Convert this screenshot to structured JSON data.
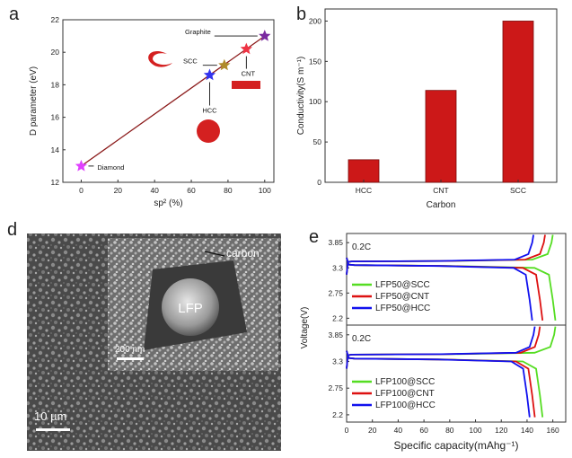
{
  "panels": {
    "a": "a",
    "b": "b",
    "d": "d",
    "e": "e"
  },
  "chart_data": [
    {
      "id": "a",
      "type": "scatter",
      "title": "",
      "xlabel": "sp² (%)",
      "ylabel": "D parameter (eV)",
      "xlim": [
        -10,
        105
      ],
      "ylim": [
        12,
        22
      ],
      "xticks": [
        0,
        20,
        40,
        60,
        80,
        100
      ],
      "yticks": [
        12,
        14,
        16,
        18,
        20,
        22
      ],
      "trend_line": {
        "x": [
          0,
          100
        ],
        "y": [
          13,
          21
        ]
      },
      "points": [
        {
          "name": "Diamond",
          "x": 0,
          "y": 13,
          "color": "#e040ff"
        },
        {
          "name": "HCC",
          "x": 70,
          "y": 18.6,
          "color": "#3333ee"
        },
        {
          "name": "SCC",
          "x": 78,
          "y": 19.2,
          "color": "#b08a2a"
        },
        {
          "name": "CNT",
          "x": 90,
          "y": 20.2,
          "color": "#ee3344"
        },
        {
          "name": "Graphite",
          "x": 100,
          "y": 21,
          "color": "#7a2aa0"
        }
      ]
    },
    {
      "id": "b",
      "type": "bar",
      "title": "",
      "xlabel": "Carbon",
      "ylabel": "Conductivity(S m⁻¹)",
      "categories": [
        "HCC",
        "CNT",
        "SCC"
      ],
      "values": [
        28,
        114,
        200
      ],
      "ylim": [
        0,
        215
      ],
      "yticks": [
        0,
        50,
        100,
        150,
        200
      ],
      "bar_color": "#cc1818"
    },
    {
      "id": "e",
      "type": "line",
      "title": "",
      "xlabel": "Specific capacity(mAhg⁻¹)",
      "ylabel": "Voltage(V)",
      "xlim": [
        0,
        170
      ],
      "xticks": [
        0,
        20,
        40,
        60,
        80,
        100,
        120,
        140,
        160
      ],
      "subplots": [
        {
          "rate_label": "0.2C",
          "ylim": [
            2.05,
            4.05
          ],
          "yticks": [
            2.2,
            2.75,
            3.3,
            3.85
          ],
          "series": [
            {
              "name": "LFP50@SCC",
              "color": "#55dd22",
              "charge_end": 160,
              "discharge_end": 162
            },
            {
              "name": "LFP50@CNT",
              "color": "#dd1111",
              "charge_end": 154,
              "discharge_end": 152
            },
            {
              "name": "LFP50@HCC",
              "color": "#1111ee",
              "charge_end": 145,
              "discharge_end": 144
            }
          ]
        },
        {
          "rate_label": "0.2C",
          "ylim": [
            2.05,
            4.05
          ],
          "yticks": [
            2.2,
            2.75,
            3.3,
            3.85
          ],
          "series": [
            {
              "name": "LFP100@SCC",
              "color": "#55dd22",
              "charge_end": 162,
              "discharge_end": 152
            },
            {
              "name": "LFP100@CNT",
              "color": "#dd1111",
              "charge_end": 150,
              "discharge_end": 146
            },
            {
              "name": "LFP100@HCC",
              "color": "#1111ee",
              "charge_end": 146,
              "discharge_end": 142
            }
          ]
        }
      ]
    }
  ],
  "sem": {
    "label_carbon": "carbon",
    "label_lfp": "LFP",
    "scale_inset": "200 nm",
    "scale_main": "10 µm"
  }
}
